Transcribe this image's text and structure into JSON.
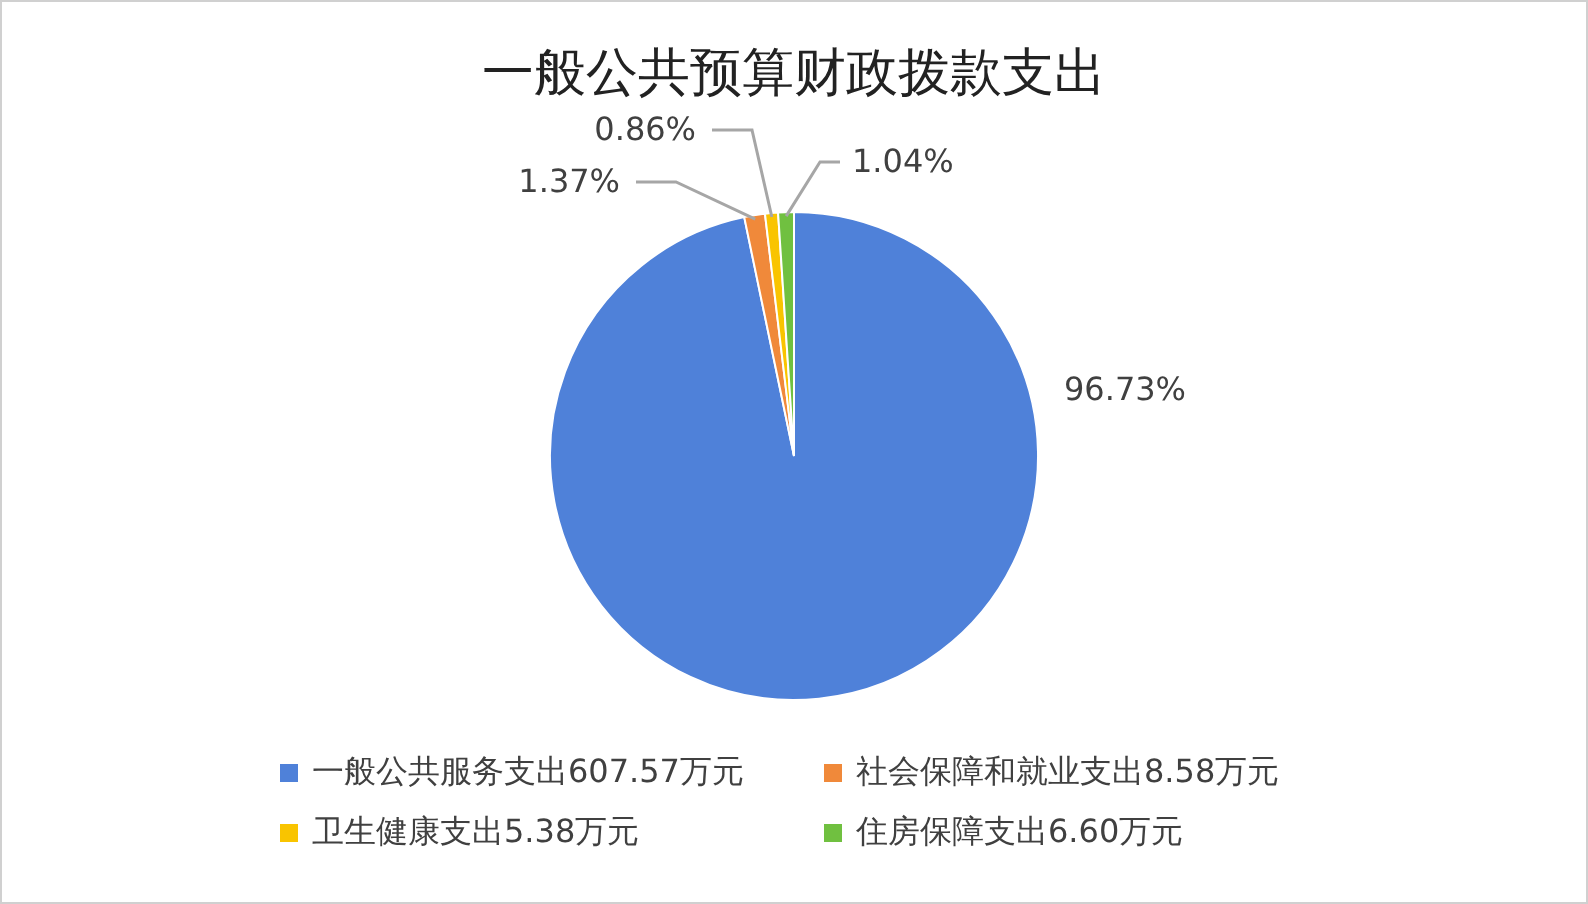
{
  "chart_data": {
    "type": "pie",
    "title": "一般公共预算财政拨款支出",
    "categories": [
      "一般公共服务支出607.57万元",
      "社会保障和就业支出8.58万元",
      "卫生健康支出5.38万元",
      "住房保障支出6.60万元"
    ],
    "values": [
      96.73,
      1.37,
      0.86,
      1.04
    ],
    "value_labels": [
      "96.73%",
      "1.37%",
      "0.86%",
      "1.04%"
    ],
    "colors": [
      "#4f81d9",
      "#f0893a",
      "#f9c400",
      "#70c040"
    ],
    "legend": "bottom"
  }
}
